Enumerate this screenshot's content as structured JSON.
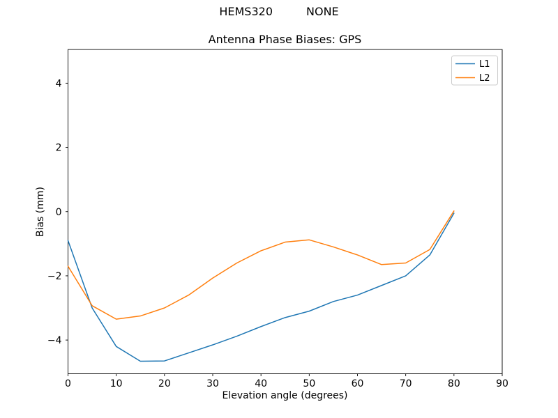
{
  "figure": {
    "suptitle_left": "HEMS320",
    "suptitle_right": "NONE"
  },
  "chart_data": {
    "type": "line",
    "title": "Antenna Phase Biases: GPS",
    "xlabel": "Elevation angle (degrees)",
    "ylabel": "Bias (mm)",
    "xlim": [
      0,
      90
    ],
    "ylim": [
      -5.05,
      5.05
    ],
    "xticks": [
      0,
      10,
      20,
      30,
      40,
      50,
      60,
      70,
      80,
      90
    ],
    "yticks": [
      -4,
      -2,
      0,
      2,
      4
    ],
    "grid": false,
    "background": "#ffffff",
    "legend": {
      "position": "upper right"
    },
    "x": [
      0,
      5,
      10,
      15,
      20,
      25,
      30,
      35,
      40,
      45,
      50,
      55,
      60,
      65,
      70,
      75,
      80
    ],
    "series": [
      {
        "name": "L1",
        "color": "#1f77b4",
        "values": [
          -0.9,
          -3.0,
          -4.2,
          -4.66,
          -4.65,
          -4.4,
          -4.15,
          -3.88,
          -3.58,
          -3.3,
          -3.1,
          -2.8,
          -2.6,
          -2.3,
          -2.0,
          -1.35,
          -0.05
        ]
      },
      {
        "name": "L2",
        "color": "#ff7f0e",
        "values": [
          -1.7,
          -2.93,
          -3.35,
          -3.25,
          -3.0,
          -2.6,
          -2.07,
          -1.6,
          -1.22,
          -0.95,
          -0.88,
          -1.1,
          -1.35,
          -1.65,
          -1.6,
          -1.18,
          0.02
        ]
      }
    ]
  }
}
